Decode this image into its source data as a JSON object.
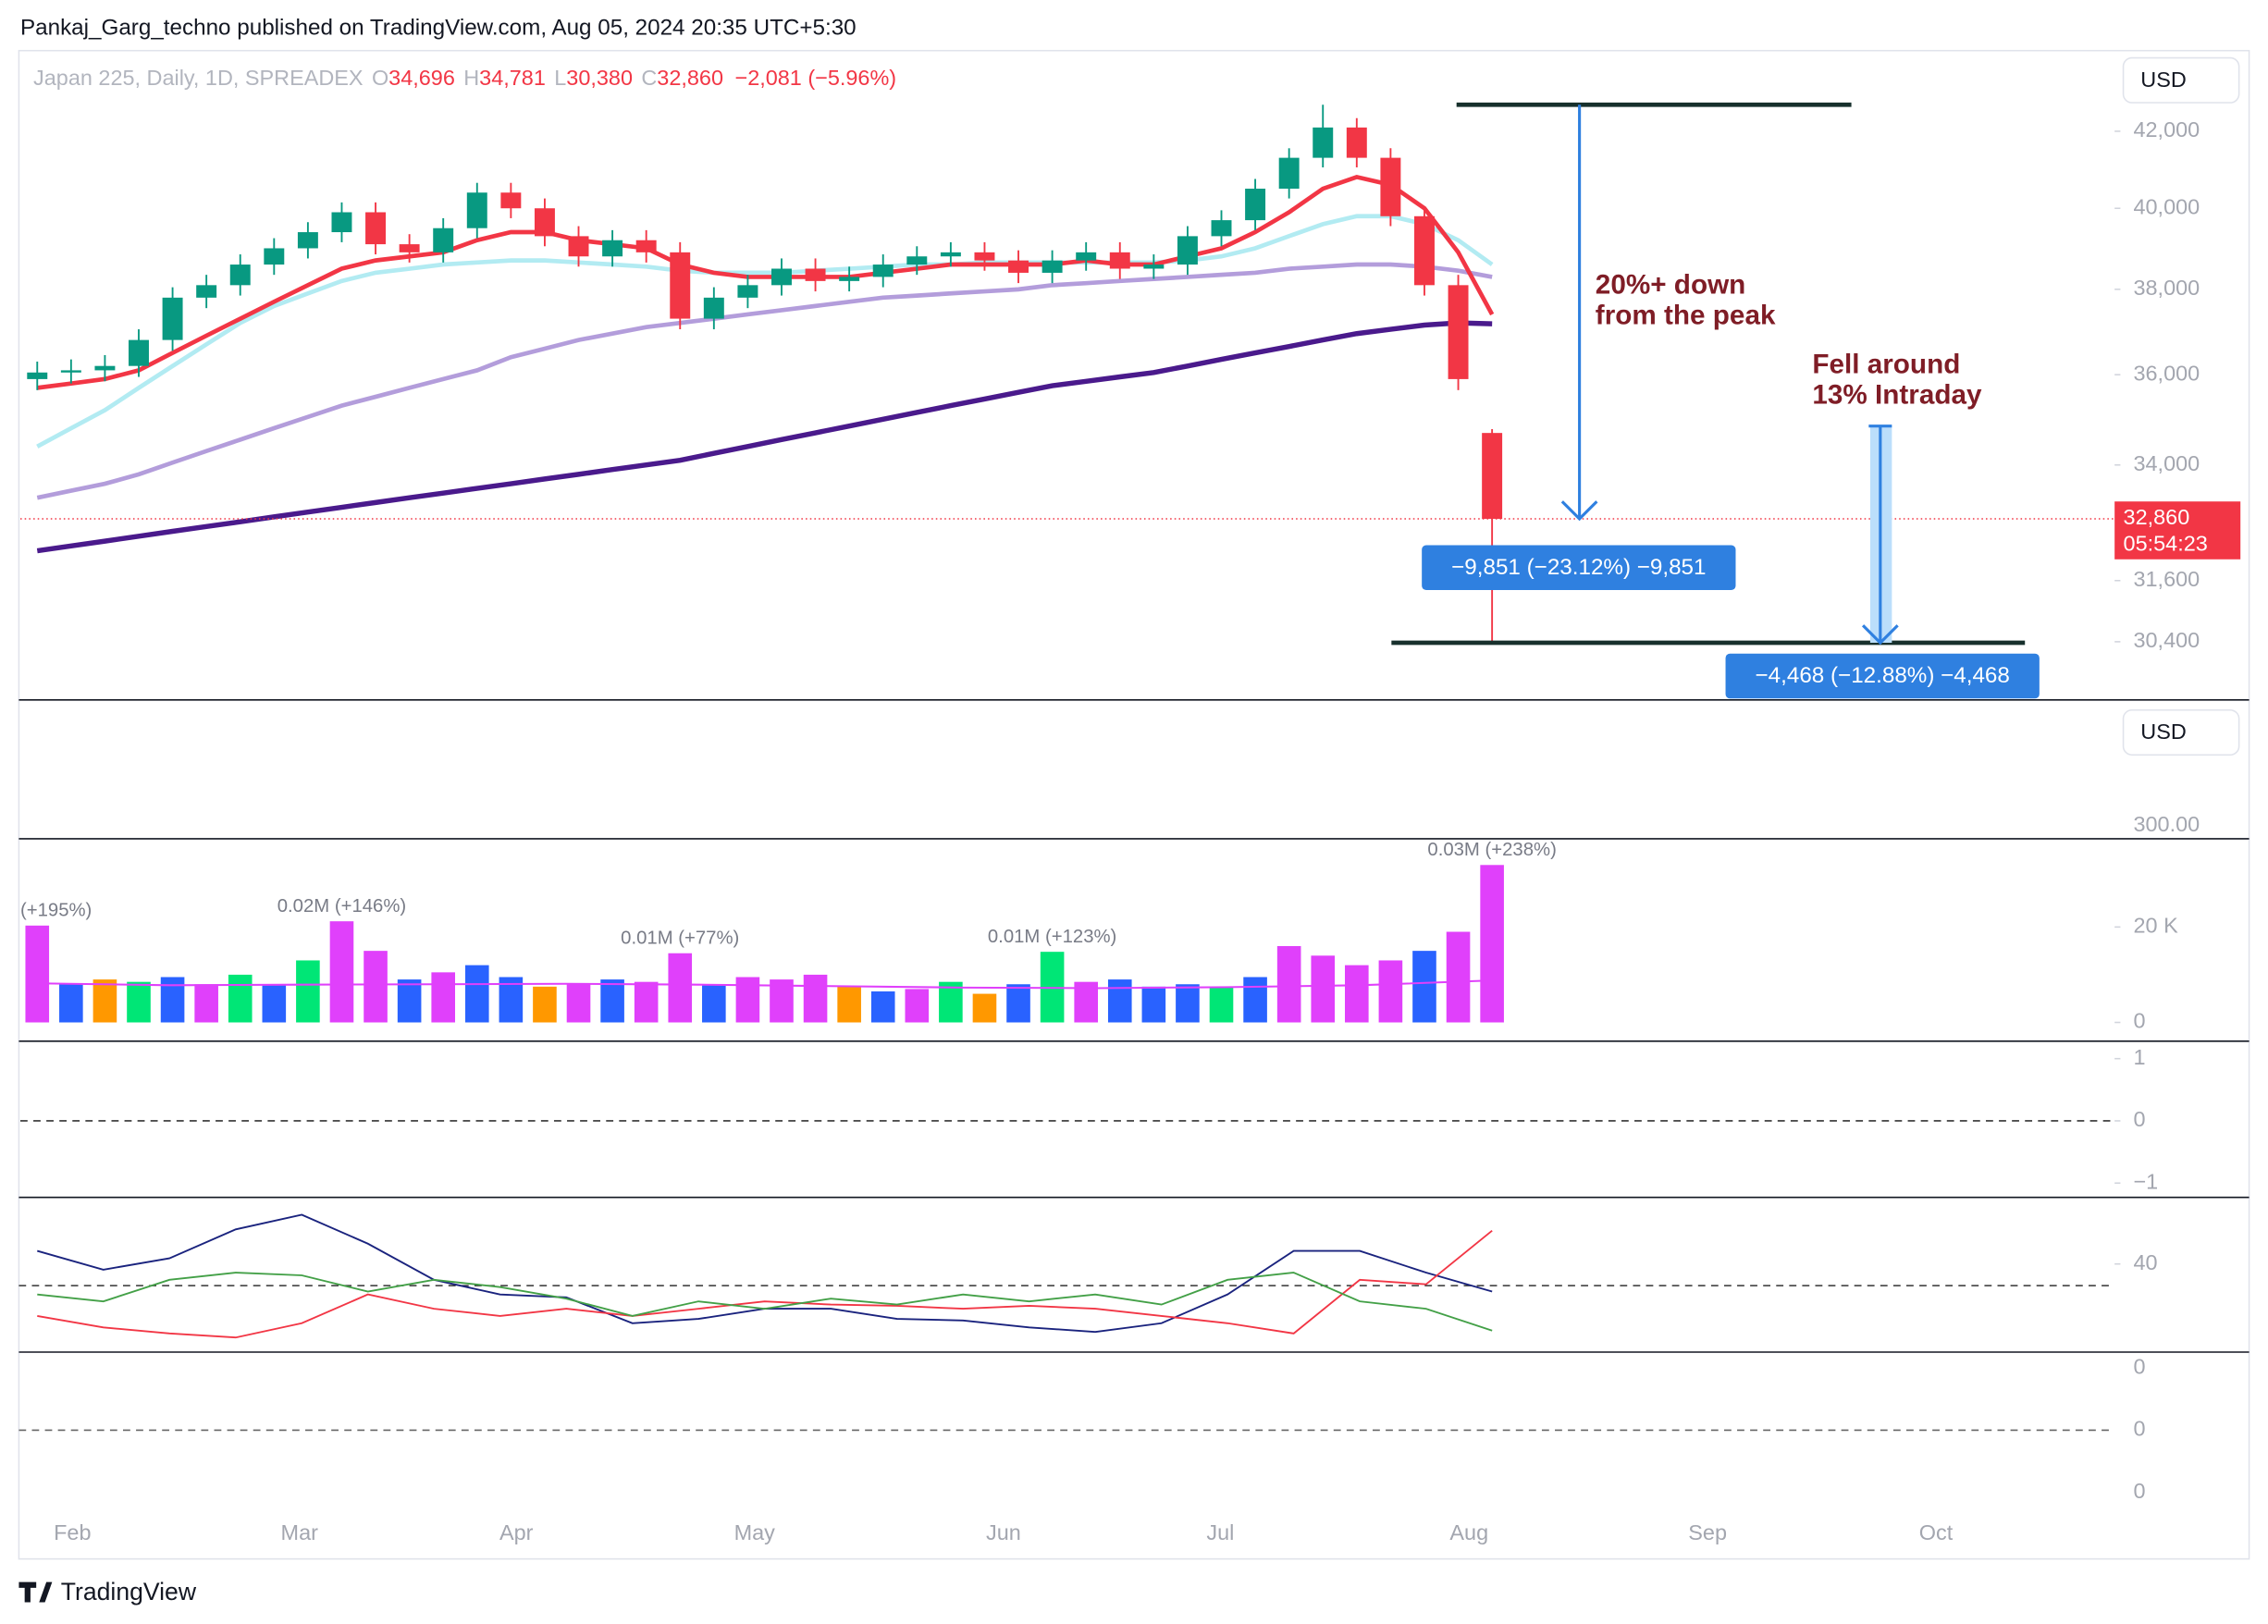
{
  "header": {
    "publisher": "Pankaj_Garg_techno published on TradingView.com, Aug 05, 2024 20:35 UTC+5:30"
  },
  "footer": {
    "brand": "TradingView"
  },
  "chart_data": [
    {
      "type": "candlestick",
      "symbol": "Japan 225, Daily, 1D, SPREADEX",
      "ohlc": [
        {
          "name": "O",
          "value": 34696,
          "label": "34,696"
        },
        {
          "name": "H",
          "value": 34781,
          "label": "34,781"
        },
        {
          "name": "L",
          "value": 30380,
          "label": "30,380"
        },
        {
          "name": "C",
          "value": 32860,
          "label": "32,860"
        }
      ],
      "change": {
        "value": -2081,
        "label": "−2,081 (−5.96%)"
      },
      "currency": "USD",
      "log": true,
      "grid": false,
      "up_color": "#089981",
      "down_color": "#f23645",
      "xlim": [
        -0.5,
        61.4
      ],
      "xticks": [
        {
          "value": 1.04,
          "label": "Feb"
        },
        {
          "value": 7.75,
          "label": "Mar"
        },
        {
          "value": 14.16,
          "label": "Apr"
        },
        {
          "value": 21.2,
          "label": "May"
        },
        {
          "value": 28.56,
          "label": "Jun"
        },
        {
          "value": 34.97,
          "label": "Jul"
        },
        {
          "value": 42.32,
          "label": "Aug"
        },
        {
          "value": 49.37,
          "label": "Sep"
        },
        {
          "value": 56.12,
          "label": "Oct"
        }
      ],
      "ylim": [
        29300,
        44200
      ],
      "yticks": [
        {
          "value": 30400,
          "label": "30,400"
        },
        {
          "value": 31600,
          "label": "31,600"
        },
        {
          "value": 34000,
          "label": "34,000"
        },
        {
          "value": 36000,
          "label": "36,000"
        },
        {
          "value": 38000,
          "label": "38,000"
        },
        {
          "value": 40000,
          "label": "40,000"
        },
        {
          "value": 42000,
          "label": "42,000"
        }
      ],
      "open": [
        35900,
        36050,
        36100,
        36200,
        36800,
        37800,
        38100,
        38600,
        39000,
        39400,
        39900,
        39100,
        38900,
        39500,
        40400,
        40000,
        39300,
        38800,
        39200,
        38900,
        37300,
        37800,
        38100,
        38500,
        38200,
        38300,
        38600,
        38800,
        38900,
        38700,
        38400,
        38700,
        38900,
        38500,
        38600,
        39300,
        39700,
        40500,
        41300,
        42100,
        41300,
        39800,
        38100,
        34696
      ],
      "high": [
        36300,
        36350,
        36450,
        37050,
        38050,
        38350,
        38850,
        39250,
        39650,
        40150,
        40150,
        39350,
        39750,
        40650,
        40650,
        40250,
        39550,
        39450,
        39450,
        39150,
        38050,
        38350,
        38750,
        38750,
        38550,
        38850,
        39050,
        39150,
        39150,
        38950,
        38950,
        39150,
        39150,
        38850,
        39550,
        39950,
        40750,
        41550,
        42711,
        42350,
        41550,
        40050,
        38350,
        34781
      ],
      "low": [
        35650,
        35800,
        35850,
        35950,
        36550,
        37550,
        37850,
        38350,
        38750,
        39150,
        38850,
        38650,
        38650,
        39250,
        39750,
        39050,
        38550,
        38550,
        38650,
        37050,
        37050,
        37550,
        37850,
        37950,
        37950,
        38050,
        38350,
        38550,
        38450,
        38150,
        38150,
        38450,
        38250,
        38250,
        38350,
        39050,
        39450,
        40250,
        41050,
        41050,
        39550,
        37850,
        35650,
        30380
      ],
      "close": [
        36050,
        36100,
        36200,
        36800,
        37800,
        38100,
        38600,
        39000,
        39400,
        39900,
        39100,
        38900,
        39500,
        40400,
        40000,
        39300,
        38800,
        39200,
        38900,
        37300,
        37800,
        38100,
        38500,
        38200,
        38300,
        38600,
        38800,
        38900,
        38700,
        38400,
        38700,
        38900,
        38500,
        38600,
        39300,
        39700,
        40500,
        41300,
        42100,
        41300,
        39800,
        38100,
        35900,
        32860
      ],
      "lines": [
        {
          "color": "#4a1a8c",
          "values": [
            32200,
            32300,
            32400,
            32500,
            32600,
            32700,
            32800,
            32900,
            33000,
            33100,
            33200,
            33300,
            33400,
            33500,
            33600,
            33700,
            33800,
            33900,
            34000,
            34100,
            34250,
            34400,
            34550,
            34700,
            34850,
            35000,
            35150,
            35300,
            35450,
            35600,
            35750,
            35850,
            35950,
            36050,
            36200,
            36350,
            36500,
            36650,
            36800,
            36950,
            37050,
            37150,
            37200,
            37180
          ]
        },
        {
          "color": "#b39ddb",
          "values": [
            33300,
            33450,
            33600,
            33800,
            34050,
            34300,
            34550,
            34800,
            35050,
            35300,
            35500,
            35700,
            35900,
            36100,
            36400,
            36600,
            36800,
            36950,
            37100,
            37200,
            37300,
            37400,
            37500,
            37600,
            37700,
            37800,
            37850,
            37900,
            37950,
            38000,
            38100,
            38150,
            38200,
            38250,
            38300,
            38350,
            38400,
            38500,
            38550,
            38600,
            38600,
            38550,
            38450,
            38300
          ]
        },
        {
          "color": "#b2ebf2",
          "values": [
            34400,
            34800,
            35200,
            35700,
            36200,
            36700,
            37200,
            37600,
            37900,
            38200,
            38400,
            38500,
            38600,
            38650,
            38700,
            38700,
            38650,
            38600,
            38550,
            38450,
            38400,
            38400,
            38400,
            38450,
            38500,
            38550,
            38600,
            38600,
            38650,
            38650,
            38650,
            38650,
            38650,
            38650,
            38700,
            38800,
            39000,
            39300,
            39600,
            39800,
            39800,
            39600,
            39200,
            38600
          ]
        },
        {
          "color": "#f23645",
          "values": [
            35700,
            35800,
            35900,
            36100,
            36500,
            36900,
            37300,
            37700,
            38100,
            38500,
            38700,
            38800,
            38900,
            39200,
            39400,
            39400,
            39200,
            39100,
            39000,
            38600,
            38400,
            38300,
            38300,
            38300,
            38300,
            38400,
            38500,
            38600,
            38600,
            38600,
            38600,
            38700,
            38600,
            38600,
            38800,
            39000,
            39400,
            39900,
            40500,
            40800,
            40600,
            40000,
            38900,
            37400
          ]
        }
      ],
      "last_price": {
        "value": 32860,
        "label": "32,860"
      },
      "countdown": "05:54:23",
      "levels": [
        42711,
        34848,
        30380
      ],
      "measures": [
        {
          "value": -9851,
          "label": "−9,851 (−23.12%) −9,851"
        },
        {
          "value": -4468,
          "label": "−4,468 (−12.88%) −4,468"
        }
      ],
      "annotations": [
        {
          "lines": [
            "20%+ down",
            "from the peak"
          ]
        },
        {
          "lines": [
            "Fell around",
            " 13% Intraday"
          ]
        }
      ]
    },
    {
      "type": "scale",
      "currency": "USD",
      "tick_labels": [
        "300.00"
      ]
    },
    {
      "type": "bar",
      "ylim": [
        -3940,
        38500
      ],
      "yticks": [
        0,
        {
          "value": 20000,
          "label": "20 K"
        }
      ],
      "values": [
        20300,
        8000,
        9000,
        8500,
        9500,
        8000,
        10000,
        8000,
        13000,
        21200,
        15000,
        9000,
        10500,
        12000,
        9500,
        7500,
        8000,
        9000,
        8500,
        14500,
        8000,
        9500,
        9000,
        10000,
        7500,
        6500,
        7000,
        8500,
        6000,
        8000,
        14800,
        8500,
        9000,
        7500,
        8000,
        7500,
        9500,
        16000,
        14000,
        12000,
        13000,
        15000,
        19000,
        33000
      ],
      "colors": [
        "#e040fb",
        "#2962ff",
        "#ff9800",
        "#00e676",
        "#2962ff",
        "#e040fb",
        "#00e676",
        "#2962ff",
        "#00e676",
        "#e040fb",
        "#e040fb",
        "#2962ff",
        "#e040fb",
        "#2962ff",
        "#2962ff",
        "#ff9800",
        "#e040fb",
        "#2962ff",
        "#e040fb",
        "#e040fb",
        "#2962ff",
        "#e040fb",
        "#e040fb",
        "#e040fb",
        "#ff9800",
        "#2962ff",
        "#e040fb",
        "#00e676",
        "#ff9800",
        "#2962ff",
        "#00e676",
        "#e040fb",
        "#2962ff",
        "#2962ff",
        "#2962ff",
        "#00e676",
        "#2962ff",
        "#e040fb",
        "#e040fb",
        "#e040fb",
        "#e040fb",
        "#2962ff",
        "#e040fb",
        "#e040fb"
      ],
      "value_labels": [
        "(+195%)",
        null,
        null,
        null,
        null,
        null,
        null,
        null,
        null,
        "0.02M (+146%)",
        null,
        null,
        null,
        null,
        null,
        null,
        null,
        null,
        null,
        "0.01M (+77%)",
        null,
        null,
        null,
        null,
        null,
        null,
        null,
        null,
        null,
        null,
        "0.01M (+123%)",
        null,
        null,
        null,
        null,
        null,
        null,
        null,
        null,
        null,
        null,
        null,
        null,
        "0.03M (+238%)"
      ],
      "ma_color": "#e040fb",
      "ma_values": [
        8200,
        7800,
        7900,
        8000,
        8100,
        7900,
        7600,
        7300,
        7200,
        7400,
        7800,
        8800
      ]
    },
    {
      "type": "line",
      "ylim": [
        -1.23,
        1.28
      ],
      "yticks": [
        1,
        0,
        {
          "value": -1,
          "label": "−1"
        }
      ]
    },
    {
      "type": "line",
      "ylim": [
        6.1,
        65.6
      ],
      "yticks": [
        40
      ],
      "series": [
        {
          "color": "#1a237e",
          "values": [
            45,
            37.8,
            42.2,
            53.3,
            58.9,
            47.8,
            33.9,
            28.3,
            27.2,
            17.2,
            18.9,
            22.8,
            22.8,
            18.9,
            18.3,
            15.6,
            13.9,
            17.2,
            28.3,
            45,
            45,
            36.7,
            29.4
          ]
        },
        {
          "color": "#f23645",
          "values": [
            20,
            15.6,
            13.3,
            11.7,
            17.2,
            28.3,
            22.8,
            20,
            22.8,
            20,
            22.8,
            25.6,
            24.4,
            23.9,
            22.8,
            23.9,
            22.8,
            20,
            17.2,
            13.3,
            33.9,
            32.2,
            52.8
          ]
        },
        {
          "color": "#43a047",
          "values": [
            28.3,
            25.6,
            33.9,
            36.7,
            35.6,
            29.4,
            33.9,
            31.1,
            26.7,
            20,
            25.6,
            22.8,
            26.7,
            24.4,
            28.3,
            25.6,
            28.3,
            24.4,
            33.9,
            36.7,
            25.6,
            22.8,
            14.4
          ]
        }
      ]
    },
    {
      "type": "scale",
      "tick_labels": [
        "0",
        "0",
        "0"
      ]
    }
  ]
}
